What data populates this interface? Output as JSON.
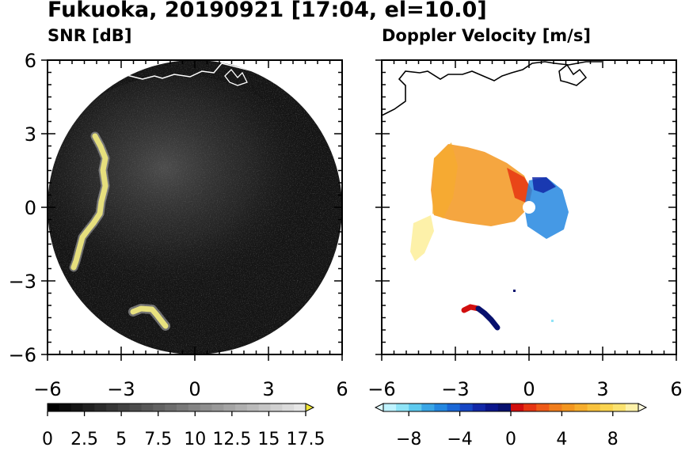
{
  "title": "Fukuoka, 20190921 [17:04, el=10.0]",
  "chart_data": [
    {
      "type": "heatmap",
      "title": "SNR [dB]",
      "xlim": [
        -6,
        6
      ],
      "ylim": [
        -6,
        6
      ],
      "xticks": [
        "−6",
        "−3",
        "0",
        "3",
        "6"
      ],
      "yticks": [
        "6",
        "3",
        "0",
        "−3",
        "−6"
      ],
      "colorbar": {
        "range": [
          0,
          17.5
        ],
        "ticks": [
          "0",
          "2.5",
          "5",
          "7.5",
          "10",
          "12.5",
          "15",
          "17.5"
        ],
        "extend": "max",
        "colors": [
          "#000000",
          "#0b0b0b",
          "#151515",
          "#202020",
          "#2b2b2b",
          "#363636",
          "#414141",
          "#4c4c4c",
          "#575757",
          "#626262",
          "#6d6d6d",
          "#787878",
          "#838383",
          "#8e8e8e",
          "#999999",
          "#a4a4a4",
          "#afafaf",
          "#bababa",
          "#c5c5c5",
          "#d0d0d0",
          "#dbdbdb",
          "#e6e6e6"
        ],
        "extend_color": "#f2e634"
      },
      "background_color": "#141414",
      "highlight_color": "#f2e634"
    },
    {
      "type": "heatmap",
      "title": "Doppler Velocity [m/s]",
      "xlim": [
        -6,
        6
      ],
      "ylim": [
        -6,
        6
      ],
      "xticks": [
        "−6",
        "−3",
        "0",
        "3",
        "6"
      ],
      "yticks": [
        "6",
        "3",
        "0",
        "−3",
        "−6"
      ],
      "colorbar": {
        "range": [
          -10,
          10
        ],
        "ticks": [
          "−8",
          "−4",
          "0",
          "4",
          "8"
        ],
        "extend": "both",
        "colors": [
          "#bff3ff",
          "#8fe4f7",
          "#5ecaef",
          "#3aa6e6",
          "#2487e0",
          "#1a67d6",
          "#1646c4",
          "#1228a8",
          "#0b168c",
          "#07106e",
          "#d10e0e",
          "#e63512",
          "#ee5a18",
          "#f07d1c",
          "#f3961f",
          "#f6ad2c",
          "#f8c23d",
          "#fad44f",
          "#fbe26f",
          "#fdf1a9"
        ],
        "extend_low": "#dffbff",
        "extend_high": "#fffbe0"
      }
    }
  ]
}
